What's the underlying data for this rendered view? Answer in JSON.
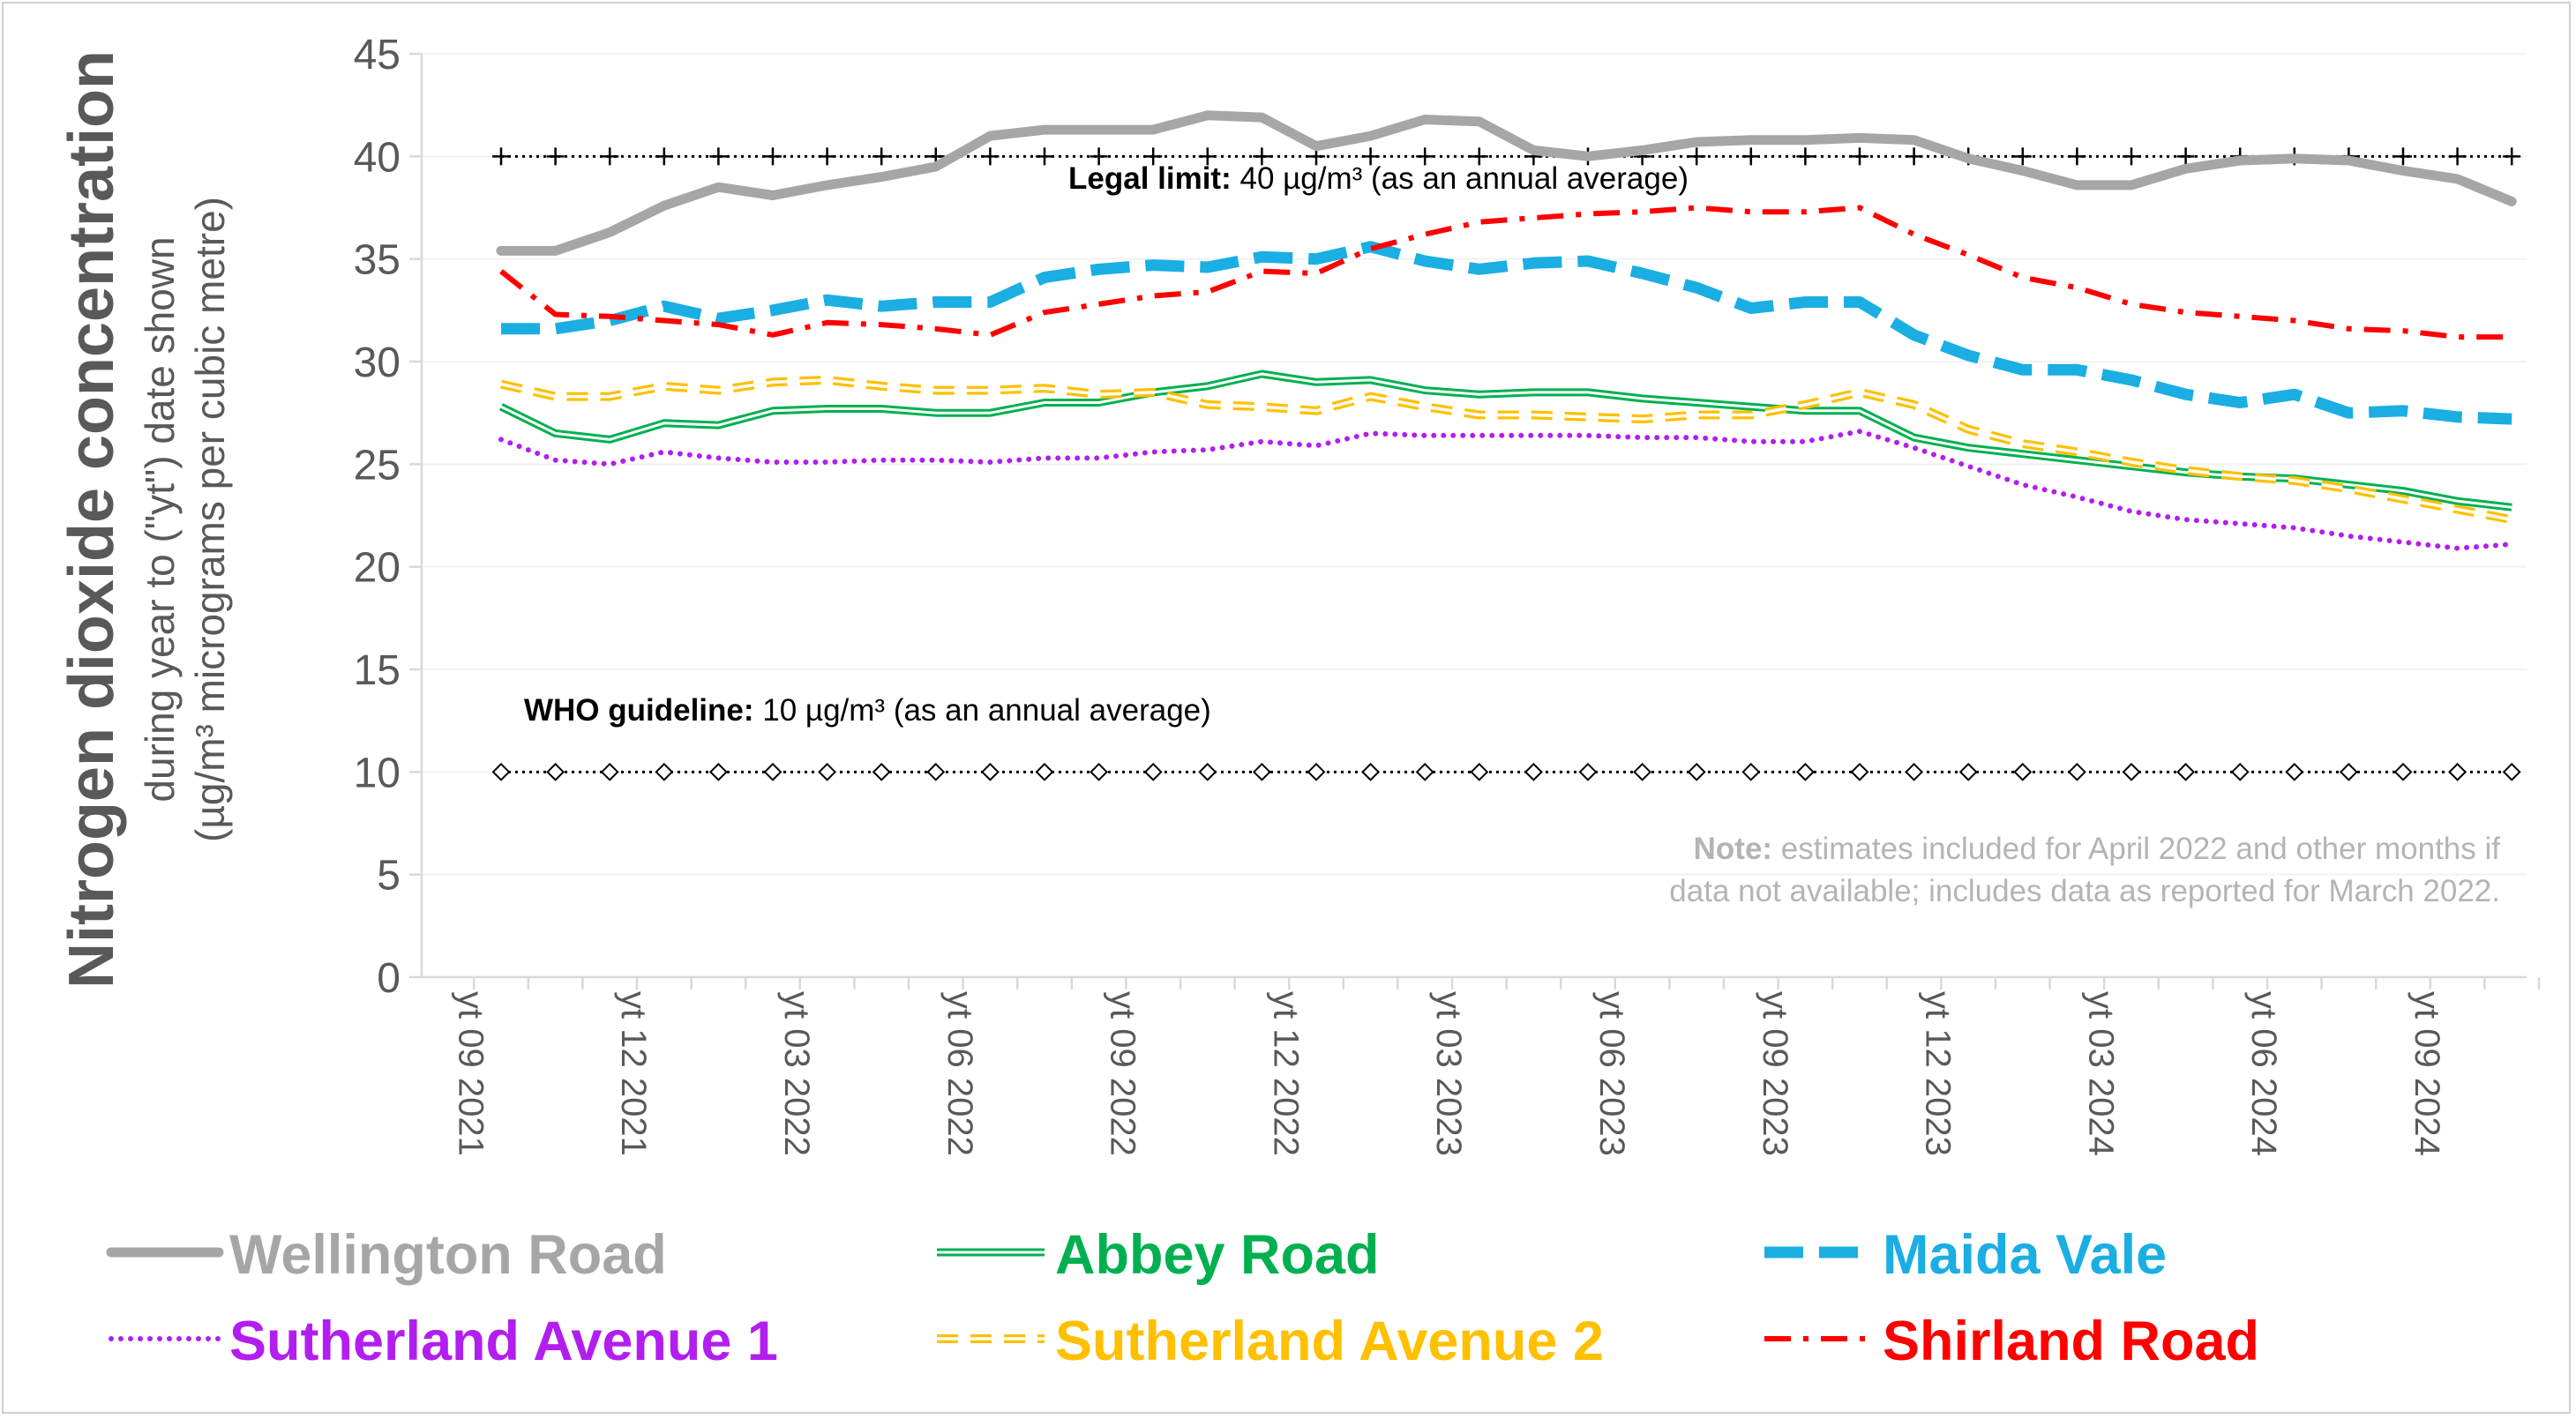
{
  "chart_data": {
    "type": "line",
    "title_main": "Nitrogen dioxide concentration",
    "ylabel_line1": "during year to (\"yt\") date shown",
    "ylabel_line2": "(µg/m³ micrograms per cubic metre)",
    "xlabel": "",
    "ylim": [
      0,
      45
    ],
    "yticks": [
      0,
      5,
      10,
      15,
      20,
      25,
      30,
      35,
      40,
      45
    ],
    "grid": true,
    "legend_position": "bottom",
    "x_tick_labels": [
      "yt 09 2021",
      "yt 12 2021",
      "yt 03 2022",
      "yt 06 2022",
      "yt 09 2022",
      "yt 12 2022",
      "yt 03 2023",
      "yt 06 2023",
      "yt 09 2023",
      "yt 12 2023",
      "yt 03 2024",
      "yt 06 2024",
      "yt 09 2024"
    ],
    "x": [
      "2021-10",
      "2021-11",
      "2021-12",
      "2022-01",
      "2022-02",
      "2022-03",
      "2022-04",
      "2022-05",
      "2022-06",
      "2022-07",
      "2022-08",
      "2022-09",
      "2022-10",
      "2022-11",
      "2022-12",
      "2023-01",
      "2023-02",
      "2023-03",
      "2023-04",
      "2023-05",
      "2023-06",
      "2023-07",
      "2023-08",
      "2023-09",
      "2023-10",
      "2023-11",
      "2023-12",
      "2024-01",
      "2024-02",
      "2024-03",
      "2024-04",
      "2024-05",
      "2024-06",
      "2024-07",
      "2024-08",
      "2024-09",
      "2024-10",
      "2024-11"
    ],
    "series": [
      {
        "name": "Wellington Road",
        "color": "#a6a6a6",
        "style": "solid-thick",
        "values": [
          35.4,
          35.4,
          36.3,
          37.6,
          38.5,
          38.1,
          38.6,
          39.0,
          39.5,
          41.0,
          41.3,
          41.3,
          41.3,
          42.0,
          41.9,
          40.5,
          41.0,
          41.8,
          41.7,
          40.3,
          40.0,
          40.3,
          40.7,
          40.8,
          40.8,
          40.9,
          40.8,
          39.9,
          39.3,
          38.6,
          38.6,
          39.4,
          39.8,
          39.9,
          39.8,
          39.3,
          38.9,
          37.8
        ]
      },
      {
        "name": "Abbey Road",
        "color": "#00b050",
        "style": "double",
        "values": [
          27.8,
          26.5,
          26.2,
          27.0,
          26.9,
          27.6,
          27.7,
          27.7,
          27.5,
          27.5,
          28.0,
          28.0,
          28.5,
          28.8,
          29.4,
          29.0,
          29.1,
          28.6,
          28.4,
          28.5,
          28.5,
          28.2,
          28.0,
          27.8,
          27.6,
          27.6,
          26.3,
          25.8,
          25.5,
          25.2,
          24.9,
          24.6,
          24.4,
          24.3,
          24.0,
          23.7,
          23.2,
          22.9
        ]
      },
      {
        "name": "Maida Vale",
        "color": "#1aaee3",
        "style": "dash-thick",
        "values": [
          31.6,
          31.6,
          32.0,
          32.7,
          32.1,
          32.5,
          33.0,
          32.7,
          32.9,
          32.9,
          34.1,
          34.5,
          34.7,
          34.6,
          35.1,
          35.0,
          35.6,
          34.9,
          34.5,
          34.8,
          34.9,
          34.3,
          33.6,
          32.6,
          32.9,
          32.9,
          31.3,
          30.3,
          29.6,
          29.6,
          29.1,
          28.4,
          28.0,
          28.4,
          27.5,
          27.6,
          27.3,
          27.2
        ]
      },
      {
        "name": "Sutherland Avenue 1",
        "color": "#b21ef0",
        "style": "dot",
        "values": [
          26.2,
          25.2,
          25.0,
          25.6,
          25.3,
          25.1,
          25.1,
          25.2,
          25.2,
          25.1,
          25.3,
          25.3,
          25.6,
          25.7,
          26.1,
          25.9,
          26.5,
          26.4,
          26.4,
          26.4,
          26.4,
          26.3,
          26.3,
          26.1,
          26.1,
          26.6,
          25.8,
          24.9,
          24.0,
          23.4,
          22.7,
          22.3,
          22.1,
          21.9,
          21.5,
          21.2,
          20.9,
          21.1
        ]
      },
      {
        "name": "Sutherland Avenue 2",
        "color": "#ffc000",
        "style": "dash-double",
        "values": [
          28.9,
          28.3,
          28.3,
          28.8,
          28.6,
          29.0,
          29.1,
          28.8,
          28.6,
          28.6,
          28.7,
          28.4,
          28.5,
          27.9,
          27.8,
          27.6,
          28.3,
          27.8,
          27.4,
          27.4,
          27.3,
          27.2,
          27.4,
          27.4,
          27.9,
          28.5,
          27.9,
          26.7,
          26.0,
          25.6,
          25.1,
          24.7,
          24.4,
          24.2,
          23.8,
          23.3,
          22.8,
          22.3
        ]
      },
      {
        "name": "Shirland Road",
        "color": "#ff0000",
        "style": "dashdot",
        "values": [
          34.4,
          32.3,
          32.2,
          32.0,
          31.8,
          31.3,
          31.9,
          31.8,
          31.6,
          31.3,
          32.4,
          32.8,
          33.2,
          33.4,
          34.4,
          34.3,
          35.5,
          36.2,
          36.8,
          37.0,
          37.2,
          37.3,
          37.5,
          37.3,
          37.3,
          37.5,
          36.2,
          35.2,
          34.1,
          33.6,
          32.8,
          32.4,
          32.2,
          32.0,
          31.6,
          31.5,
          31.2,
          31.2
        ]
      }
    ],
    "reference_lines": [
      {
        "value": 40,
        "label_bold": "Legal limit:",
        "label_rest": " 40 µg/m³ (as an annual average)",
        "marker": "plus"
      },
      {
        "value": 10,
        "label_bold": "WHO guideline:",
        "label_rest": " 10 µg/m³ (as an annual average)",
        "marker": "diamond"
      }
    ],
    "note_bold": "Note:",
    "note_line1": " estimates included for April 2022 and other months if",
    "note_line2": "data not available; includes data as reported for March 2022."
  }
}
